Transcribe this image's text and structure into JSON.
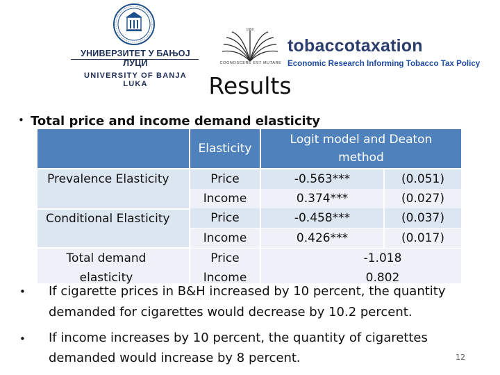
{
  "logos": {
    "university": {
      "name_cyrillic": "УНИВЕРЗИТЕТ У БАЊОЈ ЛУЦИ",
      "name_latin": "UNIVERSITY OF BANJA LUKA",
      "icon": "university-seal-icon",
      "color": "#1d2d55"
    },
    "tobaccotaxation": {
      "motto": "COGNOSCERE EST MUTARE",
      "name": "tobaccotaxation",
      "tagline": "Economic Research Informing Tobacco Tax Policy",
      "icon": "open-book-emblem-icon",
      "color": "#2c3e6e"
    }
  },
  "slide": {
    "title": "Results",
    "bullet_main": "Total price and income demand elasticity",
    "bullets": [
      {
        "line1": "If cigarette prices in B&H increased by 10 percent, the quantity",
        "line2": "demanded for cigarettes would decrease by 10.2 percent."
      },
      {
        "line1": "If income increases by 10 percent, the quantity of cigarettes",
        "line2": "demanded would increase by 8 percent."
      }
    ],
    "page_number": "12"
  },
  "table": {
    "header": {
      "col2": "Elasticity",
      "col3_line1": "Logit model and Deaton",
      "col3_line2": "method"
    },
    "groups": [
      {
        "label": "Prevalence Elasticity",
        "rows": [
          {
            "type": "Price",
            "estimate": "-0.563***",
            "se": "(0.051)"
          },
          {
            "type": "Income",
            "estimate": "0.374***",
            "se": "(0.027)"
          }
        ]
      },
      {
        "label": "Conditional Elasticity",
        "rows": [
          {
            "type": "Price",
            "estimate": "-0.458***",
            "se": "(0.037)"
          },
          {
            "type": "Income",
            "estimate": "0.426***",
            "se": "(0.017)"
          }
        ]
      },
      {
        "label_line1": "Total demand",
        "label_line2": "elasticity",
        "rows": [
          {
            "type": "Price",
            "estimate": "-1.018"
          },
          {
            "type": "Income",
            "estimate": "0.802"
          }
        ]
      }
    ],
    "colors": {
      "header": "#4f81bd",
      "band": "#dce6f1",
      "band_light": "#eef2f8"
    }
  }
}
